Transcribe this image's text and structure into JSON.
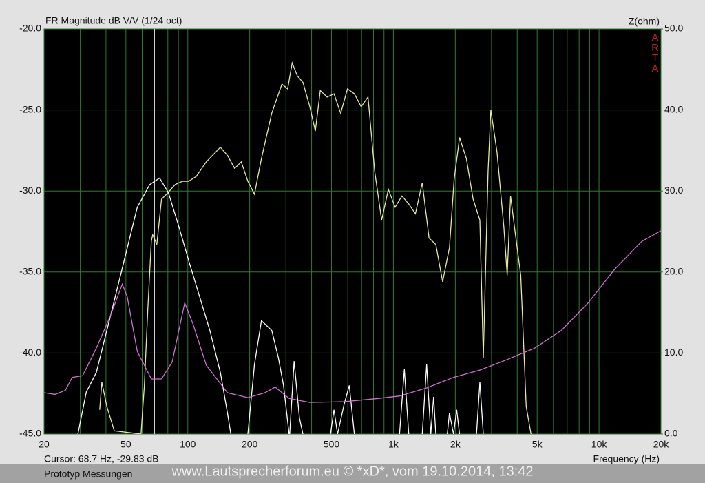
{
  "chart_data": {
    "type": "line",
    "title": "FR Magnitude dB V/V (1/24 oct)",
    "y2_label": "Z(ohm)",
    "x_label": "Frequency (Hz)",
    "brand": "ARTA",
    "cursor": {
      "x": 68.7,
      "label": "Cursor: 68.7 Hz, -29.83 dB"
    },
    "note": "Prototyp Messungen",
    "watermark": "www.Lautsprecherforum.eu © *xD*, vom 19.10.2014, 13:42",
    "xscale": "log",
    "grid": true,
    "xlim": [
      20,
      20000
    ],
    "xticks": [
      20,
      50,
      100,
      200,
      500,
      {
        "value": 1000,
        "label": "1k"
      },
      {
        "value": 2000,
        "label": "2k"
      },
      {
        "value": 5000,
        "label": "5k"
      },
      {
        "value": 10000,
        "label": "10k"
      },
      {
        "value": 20000,
        "label": "20k"
      }
    ],
    "xgrid": [
      30,
      40,
      60,
      70,
      80,
      90,
      300,
      400,
      600,
      700,
      800,
      900,
      3000,
      4000,
      6000,
      7000,
      8000,
      9000
    ],
    "ylim": [
      -45,
      -20
    ],
    "yticks": [
      {
        "value": -45,
        "label": "-45.0"
      },
      {
        "value": -40,
        "label": "-40.0"
      },
      {
        "value": -35,
        "label": "-35.0"
      },
      {
        "value": -30,
        "label": "-30.0"
      },
      {
        "value": -25,
        "label": "-25.0"
      },
      {
        "value": -20,
        "label": "-20.0"
      }
    ],
    "y2lim": [
      0,
      50
    ],
    "y2ticks": [
      {
        "value": 0,
        "label": "0.0"
      },
      {
        "value": 10,
        "label": "10.0"
      },
      {
        "value": 20,
        "label": "20.0"
      },
      {
        "value": 30,
        "label": "30.0"
      },
      {
        "value": 40,
        "label": "40.0"
      },
      {
        "value": 50,
        "label": "50.0"
      }
    ],
    "series": [
      {
        "color": "#e8e89c",
        "x": [
          37.3,
          38.2,
          40.4,
          43.9,
          59.2,
          61.5,
          63.9,
          66.5,
          67.5,
          70.7,
          74.5,
          78.8,
          86.8,
          94,
          101,
          110,
          123,
          144,
          156,
          169,
          182,
          196,
          211,
          228,
          256,
          287,
          306,
          322,
          341,
          363,
          392,
          417,
          441,
          476,
          514,
          554,
          598,
          646,
          697,
          752,
          811,
          876,
          945,
          1019,
          1100,
          1187,
          1280,
          1381,
          1490,
          1608,
          1735,
          1872,
          1973,
          2098,
          2263,
          2441,
          2634,
          2736,
          2887,
          2977,
          3191,
          3443,
          3576,
          3714,
          3921,
          4163,
          4424,
          4668
        ],
        "values": [
          -43.5,
          -41.8,
          -43.3,
          -44.8,
          -45,
          -42.0,
          -37.3,
          -33.1,
          -32.7,
          -33.3,
          -30.5,
          -30.2,
          -29.6,
          -29.4,
          -29.4,
          -29.1,
          -28.2,
          -27.3,
          -27.8,
          -28.6,
          -28.2,
          -29.4,
          -30.2,
          -28.0,
          -25.2,
          -23.4,
          -23.7,
          -22.1,
          -22.9,
          -23.3,
          -24.8,
          -26.3,
          -23.8,
          -24.2,
          -24.0,
          -25.2,
          -23.7,
          -24.0,
          -24.8,
          -24.2,
          -28.8,
          -31.8,
          -29.9,
          -31.0,
          -30.3,
          -30.8,
          -31.4,
          -29.5,
          -32.9,
          -33.3,
          -35.6,
          -33.5,
          -29.3,
          -26.7,
          -28.0,
          -30.5,
          -31.8,
          -40.3,
          -28.8,
          -25.0,
          -27.6,
          -32.2,
          -35.2,
          -30.3,
          -32.7,
          -35.2,
          -43.3,
          -45
        ]
      },
      {
        "color": "#ffffff",
        "x": [
          29.2,
          32.1,
          35.9,
          41.9,
          48.8,
          56.8,
          65.3,
          72.9,
          80.5,
          90.5,
          101.6,
          114,
          128,
          144,
          156,
          162,
          180,
          196,
          211,
          228,
          256,
          276,
          292,
          311,
          313,
          329,
          349,
          363,
          450,
          494,
          514,
          535,
          575,
          610,
          646,
          900,
          1071,
          1130,
          1187,
          1250,
          1381,
          1451,
          1520,
          1568,
          1608,
          1700,
          1829,
          1872,
          1960,
          2030,
          2098,
          2300,
          2535,
          2634,
          2736
        ],
        "values": [
          -45,
          -42.4,
          -41.2,
          -37.8,
          -34.4,
          -31.0,
          -29.6,
          -29.2,
          -30.1,
          -32.2,
          -34.4,
          -36.5,
          -38.6,
          -41.2,
          -43.7,
          -45,
          null,
          -45,
          -40.7,
          -38.0,
          -38.6,
          -40.3,
          -42.0,
          -45,
          -45,
          -40.5,
          -44.0,
          -45,
          null,
          -45,
          -43.5,
          -45,
          -43.2,
          -42.0,
          -45,
          null,
          -45,
          -41.0,
          -45,
          null,
          -45,
          -40.7,
          -45,
          -42.7,
          -45,
          null,
          -45,
          -43.7,
          -45,
          -43.5,
          -45,
          null,
          -45,
          -41.8,
          -45
        ]
      },
      {
        "color": "#d070d0",
        "axis": "y2",
        "x": [
          20,
          22.6,
          25.4,
          27.4,
          30.8,
          35.9,
          41.9,
          48,
          50.7,
          56.8,
          66.5,
          74.5,
          84,
          96.6,
          106,
          123,
          156,
          196,
          237,
          266,
          311,
          392,
          575,
          844,
          1071,
          1451,
          1960,
          2634,
          3576,
          4856,
          6560,
          8860,
          11960,
          16170,
          20000
        ],
        "values": [
          5.1,
          4.9,
          5.4,
          7.0,
          7.2,
          10.6,
          14.5,
          18.5,
          17.0,
          10.2,
          6.8,
          6.8,
          8.9,
          16.2,
          13.6,
          8.5,
          5.1,
          4.5,
          5.1,
          5.8,
          4.4,
          3.9,
          4.0,
          4.4,
          4.7,
          5.7,
          7.0,
          7.9,
          9.2,
          10.6,
          12.8,
          16.2,
          20.4,
          23.8,
          25.1
        ]
      }
    ]
  }
}
